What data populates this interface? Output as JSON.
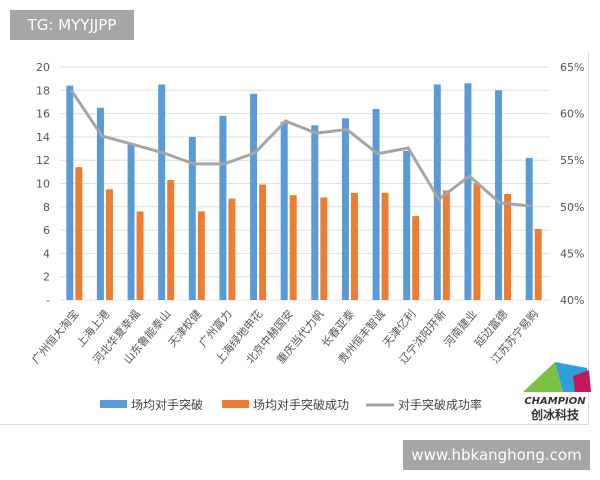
{
  "badge": "TG: MYYJJPP",
  "watermark": "www.hbkanghong.com",
  "logo": {
    "name": "CHAMPION",
    "cn": "创冰科技"
  },
  "colors": {
    "bar1": "#5b9bd5",
    "bar2": "#ed7d31",
    "line": "#a5a5a5"
  },
  "chart_data": {
    "type": "bar+line",
    "categories": [
      "广州恒大淘宝",
      "上海上港",
      "河北华夏幸福",
      "山东鲁能泰山",
      "天津权健",
      "广州富力",
      "上海绿地申花",
      "北京中赫国安",
      "重庆当代力帆",
      "长春亚泰",
      "贵州恒丰智诚",
      "天津亿利",
      "辽宁沈阳开新",
      "河南建业",
      "延边富德",
      "江苏苏宁易购"
    ],
    "series": [
      {
        "name": "场均对手突破",
        "type": "bar",
        "axis": "left",
        "values": [
          18.4,
          16.5,
          13.4,
          18.5,
          14.0,
          15.8,
          17.7,
          15.3,
          15.0,
          15.6,
          16.4,
          12.8,
          18.5,
          18.6,
          18.0,
          12.2
        ]
      },
      {
        "name": "场均对手突破成功",
        "type": "bar",
        "axis": "left",
        "values": [
          11.4,
          9.5,
          7.6,
          10.3,
          7.6,
          8.7,
          9.9,
          9.0,
          8.8,
          9.2,
          9.2,
          7.2,
          9.4,
          10.0,
          9.1,
          6.1
        ]
      },
      {
        "name": "对手突破成功率",
        "type": "line",
        "axis": "right",
        "values": [
          62.5,
          57.6,
          56.7,
          55.8,
          54.6,
          54.6,
          55.8,
          59.2,
          57.9,
          58.3,
          55.7,
          56.3,
          50.8,
          53.3,
          50.4,
          50.1
        ]
      }
    ],
    "yleft": {
      "ylim": [
        0,
        20
      ],
      "ticks": [
        "-",
        "2",
        "4",
        "6",
        "8",
        "10",
        "12",
        "14",
        "16",
        "18",
        "20"
      ]
    },
    "yright": {
      "ylim": [
        40,
        65
      ],
      "ticks": [
        "40%",
        "45%",
        "50%",
        "55%",
        "60%",
        "65%"
      ]
    },
    "grid": true,
    "legend": "bottom"
  }
}
